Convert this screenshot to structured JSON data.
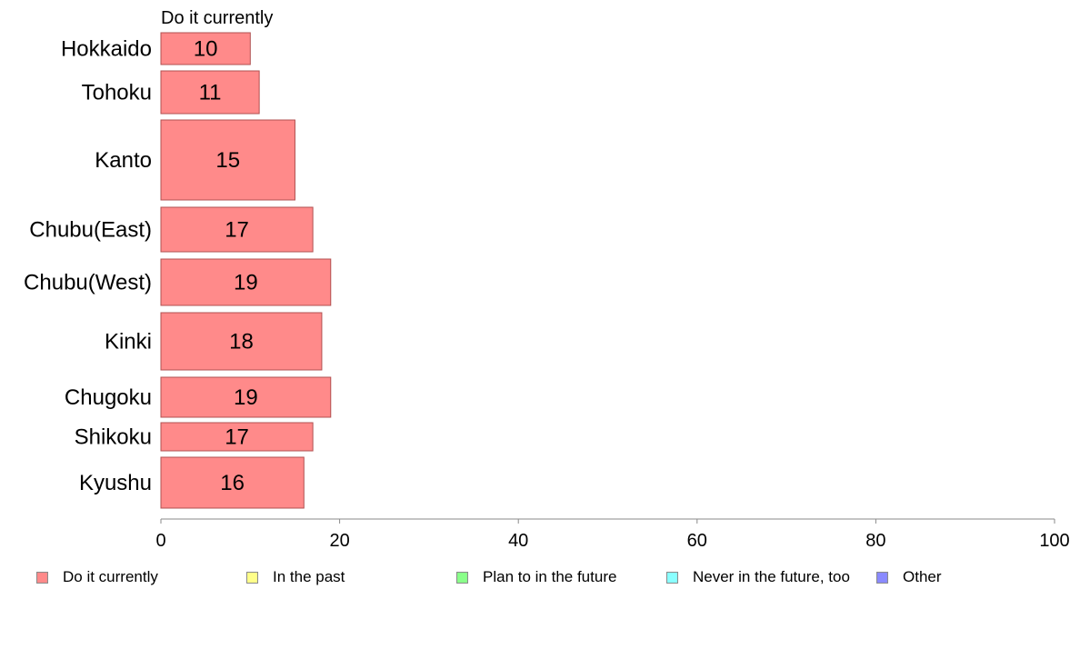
{
  "chart_data": {
    "type": "bar",
    "orientation": "horizontal",
    "series_title": "Do it currently",
    "categories": [
      "Hokkaido",
      "Tohoku",
      "Kanto",
      "Chubu(East)",
      "Chubu(West)",
      "Kinki",
      "Chugoku",
      "Shikoku",
      "Kyushu"
    ],
    "values": [
      10,
      11,
      15,
      17,
      19,
      18,
      19,
      17,
      16
    ],
    "data_labels": [
      "10",
      "11",
      "15",
      "17",
      "19",
      "18",
      "19",
      "17",
      "16"
    ],
    "xlim": [
      0,
      100
    ],
    "x_ticks": [
      "0",
      "20",
      "40",
      "60",
      "80",
      "100"
    ],
    "bar_color": "#ff8a8a",
    "bar_border": "#b05050",
    "grid": false,
    "legend": {
      "placement": "bottom",
      "items": [
        {
          "label": "Do it currently",
          "color": "#ff8a8a"
        },
        {
          "label": "In the past",
          "color": "#ffff8a"
        },
        {
          "label": "Plan to in the future",
          "color": "#8aff8a"
        },
        {
          "label": "Never in the future, too",
          "color": "#8affff"
        },
        {
          "label": "Other",
          "color": "#8a8aff"
        }
      ]
    }
  }
}
